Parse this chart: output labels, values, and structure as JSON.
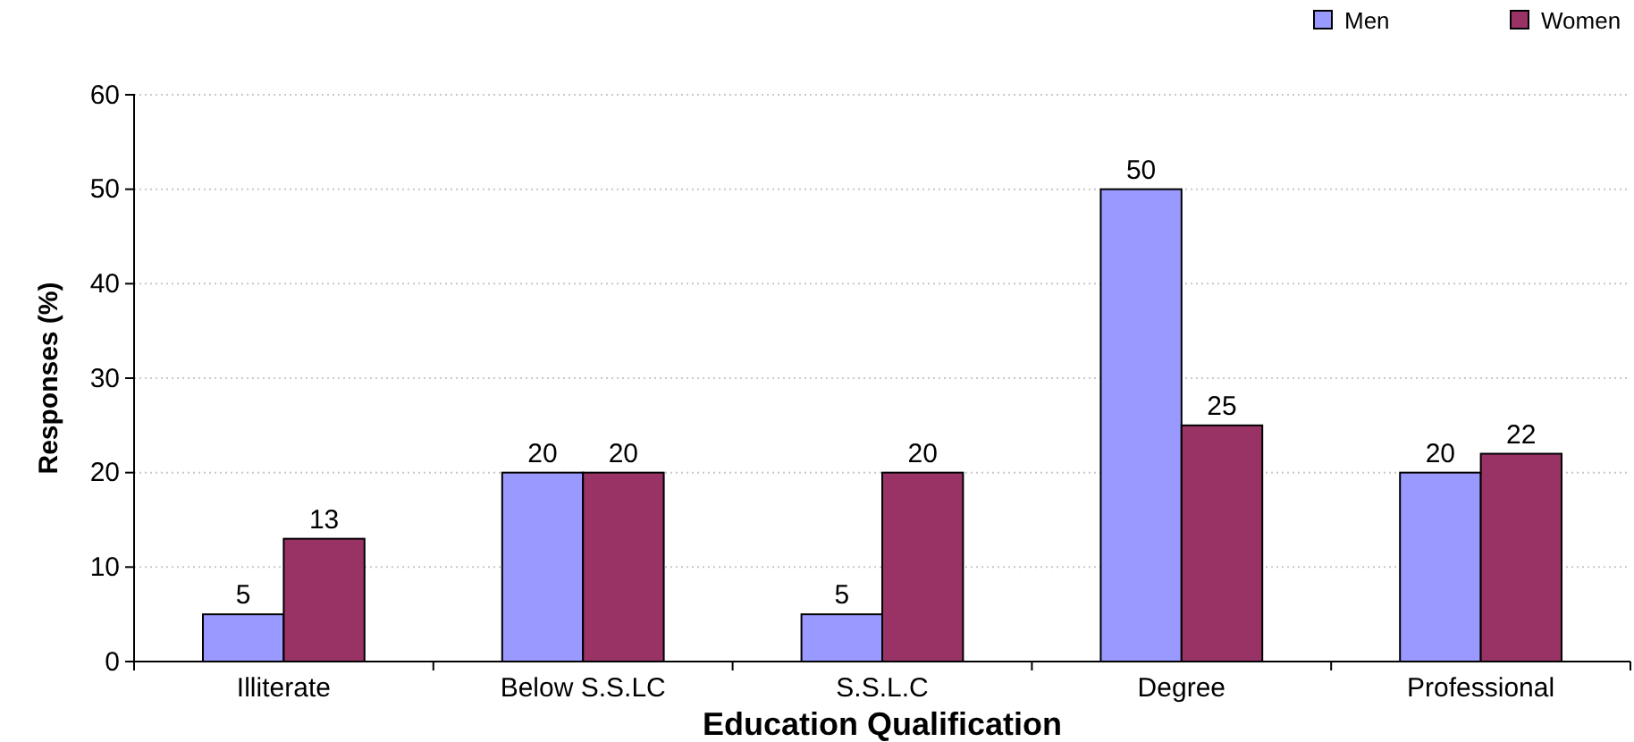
{
  "chart_data": {
    "type": "bar",
    "xlabel": "Education Qualification",
    "ylabel": "Responses (%)",
    "categories": [
      "Illiterate",
      "Below S.S.LC",
      "S.S.L.C",
      "Degree",
      "Professional"
    ],
    "series": [
      {
        "name": "Men",
        "color": "#9999ff",
        "values": [
          5,
          20,
          5,
          50,
          20
        ]
      },
      {
        "name": "Women",
        "color": "#993366",
        "values": [
          13,
          20,
          20,
          25,
          22
        ]
      }
    ],
    "ylim": [
      0,
      60
    ],
    "yticks": [
      0,
      10,
      20,
      30,
      40,
      50,
      60
    ],
    "grid": "y",
    "legend": "top right",
    "data_labels": true
  }
}
